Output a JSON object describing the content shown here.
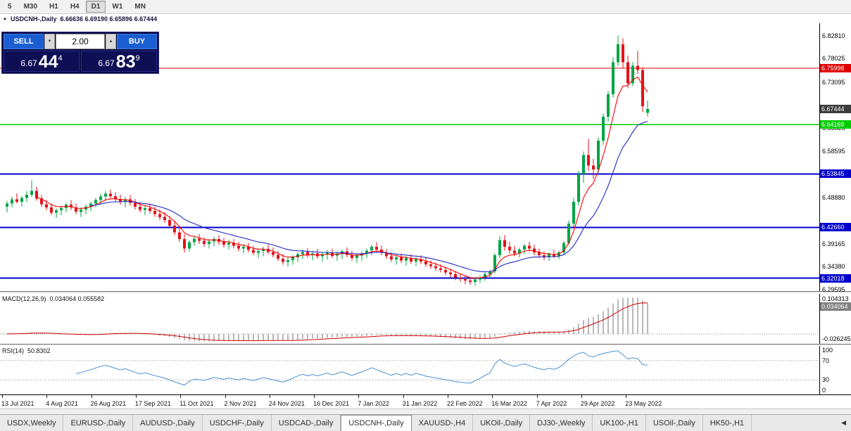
{
  "toolbar": {
    "timeframes": [
      {
        "label": "5",
        "active": false
      },
      {
        "label": "M30",
        "active": false
      },
      {
        "label": "H1",
        "active": false
      },
      {
        "label": "H4",
        "active": false
      },
      {
        "label": "D1",
        "active": true
      },
      {
        "label": "W1",
        "active": false
      },
      {
        "label": "MN",
        "active": false
      }
    ]
  },
  "chart_header": {
    "collapse_icon": "▲",
    "symbol": "USDCNH-,Daily",
    "ohlc": "6.66636 6.69190 6.65896 6.67444"
  },
  "trade_panel": {
    "sell_label": "SELL",
    "buy_label": "BUY",
    "volume": "2.00",
    "spin_up_icon": "▲",
    "spin_down_icon": "▼",
    "sell_price": {
      "big": "6.67",
      "pips": "44",
      "pt": "4"
    },
    "buy_price": {
      "big": "6.67",
      "pips": "83",
      "pt": "9"
    }
  },
  "price_axis": {
    "plain_labels": [
      "6.82810",
      "6.78025",
      "6.73095",
      "6.63525",
      "6.58595",
      "6.48880",
      "6.39165",
      "6.34380",
      "6.29595"
    ],
    "current": {
      "label": "6.67444",
      "price": 6.67444,
      "bg": "#3c3c3c"
    }
  },
  "levels": [
    {
      "label": "6.75998",
      "price": 6.75998,
      "color": "#e00000",
      "width": 1.3
    },
    {
      "label": "6.64169",
      "price": 6.64169,
      "color": "#00ce00",
      "width": 1.6
    },
    {
      "label": "6.53845",
      "price": 6.53845,
      "color": "#0000cd",
      "width": 2
    },
    {
      "label": "6.42660",
      "price": 6.4266,
      "color": "#0000cd",
      "width": 2
    },
    {
      "label": "6.32018",
      "price": 6.32018,
      "color": "#0000cd",
      "width": 2
    }
  ],
  "macd": {
    "header_name": "MACD(12,26,9)",
    "header_values": "0.034064 0.055582",
    "axis_top": "0.104313",
    "axis_badge": "0.034064",
    "axis_bottom": "-0.026245",
    "params": {
      "fast": 12,
      "slow": 26,
      "signal": 9
    }
  },
  "rsi": {
    "header_name": "RSI(14)",
    "header_value": "50.8302",
    "axis_labels": [
      "100",
      "70",
      "30",
      "0"
    ],
    "period": 14,
    "levels": [
      70,
      30
    ]
  },
  "date_axis": {
    "labels": [
      "13 Jul 2021",
      "4 Aug 2021",
      "26 Aug 2021",
      "17 Sep 2021",
      "11 Oct 2021",
      "2 Nov 2021",
      "24 Nov 2021",
      "16 Dec 2021",
      "7 Jan 2022",
      "31 Jan 2022",
      "22 Feb 2022",
      "16 Mar 2022",
      "7 Apr 2022",
      "29 Apr 2022",
      "23 May 2022"
    ]
  },
  "tabbar": {
    "tabs": [
      "USDX,Weekly",
      "EURUSD-,Daily",
      "AUDUSD-,Daily",
      "USDCHF-,Daily",
      "USDCAD-,Daily",
      "USDCNH-,Daily",
      "XAUUSD-,H4",
      "UKOil-,Daily",
      "DJ30-,Weekly",
      "UK100-,H1",
      "USOil-,Daily",
      "HK50-,H1"
    ],
    "active": "USDCNH-,Daily",
    "scroll_left_icon": "◀"
  },
  "colors": {
    "bull": "#00a546",
    "bear": "#e31219",
    "ma_fast": "#ff0000",
    "ma_slow": "#2028c0",
    "macd_hist": "#b8b8b8",
    "macd_signal": "#d00000",
    "rsi_line": "#4a90d0",
    "button_blue": "#1b5ed2",
    "panel_navy": "#0b0b46",
    "price_box_navy": "#0e0e55"
  },
  "chart_data": {
    "type": "candlestick",
    "symbol": "USDCNH-",
    "timeframe": "Daily",
    "title": "USDCNH-,Daily",
    "ylim": [
      6.293,
      6.854
    ],
    "ohlc_current": {
      "open": 6.66636,
      "high": 6.6919,
      "low": 6.65896,
      "close": 6.67444
    },
    "moving_averages": [
      {
        "type": "ema",
        "period": 6,
        "color": "#ff0000"
      },
      {
        "type": "ema",
        "period": 17,
        "color": "#2028c0"
      }
    ],
    "candles": [
      [
        6.47,
        6.482,
        6.458,
        6.476
      ],
      [
        6.476,
        6.49,
        6.468,
        6.485
      ],
      [
        6.485,
        6.498,
        6.476,
        6.48
      ],
      [
        6.48,
        6.492,
        6.47,
        6.488
      ],
      [
        6.488,
        6.502,
        6.48,
        6.495
      ],
      [
        6.495,
        6.525,
        6.49,
        6.503
      ],
      [
        6.503,
        6.512,
        6.482,
        6.487
      ],
      [
        6.487,
        6.494,
        6.47,
        6.475
      ],
      [
        6.475,
        6.484,
        6.462,
        6.468
      ],
      [
        6.468,
        6.476,
        6.452,
        6.457
      ],
      [
        6.457,
        6.466,
        6.446,
        6.462
      ],
      [
        6.462,
        6.472,
        6.452,
        6.467
      ],
      [
        6.467,
        6.478,
        6.458,
        6.474
      ],
      [
        6.474,
        6.484,
        6.462,
        6.468
      ],
      [
        6.468,
        6.476,
        6.454,
        6.459
      ],
      [
        6.459,
        6.468,
        6.448,
        6.464
      ],
      [
        6.464,
        6.474,
        6.454,
        6.47
      ],
      [
        6.47,
        6.48,
        6.46,
        6.476
      ],
      [
        6.476,
        6.488,
        6.468,
        6.484
      ],
      [
        6.484,
        6.496,
        6.474,
        6.491
      ],
      [
        6.491,
        6.502,
        6.482,
        6.497
      ],
      [
        6.497,
        6.506,
        6.486,
        6.492
      ],
      [
        6.492,
        6.5,
        6.48,
        6.486
      ],
      [
        6.486,
        6.495,
        6.474,
        6.48
      ],
      [
        6.48,
        6.49,
        6.468,
        6.485
      ],
      [
        6.485,
        6.494,
        6.472,
        6.478
      ],
      [
        6.478,
        6.486,
        6.464,
        6.47
      ],
      [
        6.47,
        6.479,
        6.458,
        6.463
      ],
      [
        6.463,
        6.472,
        6.452,
        6.467
      ],
      [
        6.467,
        6.476,
        6.456,
        6.461
      ],
      [
        6.461,
        6.47,
        6.448,
        6.454
      ],
      [
        6.454,
        6.464,
        6.442,
        6.448
      ],
      [
        6.448,
        6.458,
        6.436,
        6.442
      ],
      [
        6.442,
        6.45,
        6.424,
        6.43
      ],
      [
        6.43,
        6.44,
        6.41,
        6.416
      ],
      [
        6.416,
        6.426,
        6.396,
        6.402
      ],
      [
        6.402,
        6.412,
        6.374,
        6.382
      ],
      [
        6.382,
        6.4,
        6.376,
        6.395
      ],
      [
        6.395,
        6.408,
        6.388,
        6.403
      ],
      [
        6.403,
        6.412,
        6.392,
        6.398
      ],
      [
        6.398,
        6.406,
        6.386,
        6.392
      ],
      [
        6.392,
        6.402,
        6.382,
        6.397
      ],
      [
        6.397,
        6.407,
        6.387,
        6.402
      ],
      [
        6.402,
        6.41,
        6.39,
        6.396
      ],
      [
        6.396,
        6.404,
        6.384,
        6.39
      ],
      [
        6.39,
        6.4,
        6.38,
        6.394
      ],
      [
        6.394,
        6.402,
        6.382,
        6.388
      ],
      [
        6.388,
        6.396,
        6.376,
        6.382
      ],
      [
        6.382,
        6.392,
        6.372,
        6.386
      ],
      [
        6.386,
        6.394,
        6.374,
        6.379
      ],
      [
        6.379,
        6.388,
        6.368,
        6.373
      ],
      [
        6.373,
        6.382,
        6.362,
        6.377
      ],
      [
        6.377,
        6.386,
        6.366,
        6.381
      ],
      [
        6.381,
        6.39,
        6.37,
        6.375
      ],
      [
        6.375,
        6.384,
        6.364,
        6.369
      ],
      [
        6.369,
        6.378,
        6.356,
        6.361
      ],
      [
        6.361,
        6.37,
        6.348,
        6.354
      ],
      [
        6.354,
        6.364,
        6.344,
        6.358
      ],
      [
        6.358,
        6.368,
        6.348,
        6.364
      ],
      [
        6.364,
        6.374,
        6.354,
        6.37
      ],
      [
        6.37,
        6.38,
        6.36,
        6.375
      ],
      [
        6.375,
        6.383,
        6.363,
        6.368
      ],
      [
        6.368,
        6.377,
        6.357,
        6.372
      ],
      [
        6.372,
        6.381,
        6.361,
        6.366
      ],
      [
        6.366,
        6.375,
        6.355,
        6.37
      ],
      [
        6.37,
        6.379,
        6.359,
        6.374
      ],
      [
        6.374,
        6.382,
        6.362,
        6.367
      ],
      [
        6.367,
        6.376,
        6.356,
        6.371
      ],
      [
        6.371,
        6.38,
        6.36,
        6.376
      ],
      [
        6.376,
        6.384,
        6.364,
        6.369
      ],
      [
        6.369,
        6.377,
        6.357,
        6.362
      ],
      [
        6.362,
        6.372,
        6.352,
        6.367
      ],
      [
        6.367,
        6.376,
        6.357,
        6.372
      ],
      [
        6.372,
        6.382,
        6.362,
        6.378
      ],
      [
        6.378,
        6.39,
        6.368,
        6.386
      ],
      [
        6.386,
        6.395,
        6.374,
        6.38
      ],
      [
        6.38,
        6.388,
        6.368,
        6.373
      ],
      [
        6.373,
        6.381,
        6.361,
        6.366
      ],
      [
        6.366,
        6.374,
        6.354,
        6.359
      ],
      [
        6.359,
        6.368,
        6.348,
        6.364
      ],
      [
        6.364,
        6.372,
        6.352,
        6.357
      ],
      [
        6.357,
        6.366,
        6.347,
        6.362
      ],
      [
        6.362,
        6.37,
        6.35,
        6.355
      ],
      [
        6.355,
        6.364,
        6.345,
        6.36
      ],
      [
        6.36,
        6.368,
        6.35,
        6.355
      ],
      [
        6.355,
        6.362,
        6.344,
        6.349
      ],
      [
        6.349,
        6.357,
        6.34,
        6.345
      ],
      [
        6.345,
        6.353,
        6.336,
        6.341
      ],
      [
        6.341,
        6.349,
        6.332,
        6.337
      ],
      [
        6.337,
        6.344,
        6.326,
        6.332
      ],
      [
        6.332,
        6.34,
        6.322,
        6.328
      ],
      [
        6.328,
        6.335,
        6.316,
        6.322
      ],
      [
        6.322,
        6.33,
        6.312,
        6.318
      ],
      [
        6.318,
        6.326,
        6.308,
        6.315
      ],
      [
        6.315,
        6.322,
        6.306,
        6.312
      ],
      [
        6.312,
        6.32,
        6.305,
        6.317
      ],
      [
        6.317,
        6.326,
        6.31,
        6.322
      ],
      [
        6.322,
        6.332,
        6.314,
        6.328
      ],
      [
        6.328,
        6.338,
        6.32,
        6.334
      ],
      [
        6.334,
        6.372,
        6.33,
        6.368
      ],
      [
        6.368,
        6.408,
        6.362,
        6.4
      ],
      [
        6.4,
        6.41,
        6.378,
        6.386
      ],
      [
        6.386,
        6.396,
        6.372,
        6.378
      ],
      [
        6.378,
        6.388,
        6.366,
        6.372
      ],
      [
        6.372,
        6.384,
        6.364,
        6.38
      ],
      [
        6.38,
        6.392,
        6.37,
        6.388
      ],
      [
        6.388,
        6.396,
        6.376,
        6.382
      ],
      [
        6.382,
        6.39,
        6.368,
        6.374
      ],
      [
        6.374,
        6.382,
        6.362,
        6.368
      ],
      [
        6.368,
        6.376,
        6.358,
        6.364
      ],
      [
        6.364,
        6.374,
        6.356,
        6.37
      ],
      [
        6.37,
        6.38,
        6.362,
        6.366
      ],
      [
        6.366,
        6.378,
        6.36,
        6.374
      ],
      [
        6.374,
        6.398,
        6.37,
        6.394
      ],
      [
        6.394,
        6.44,
        6.39,
        6.434
      ],
      [
        6.434,
        6.488,
        6.428,
        6.48
      ],
      [
        6.48,
        6.545,
        6.472,
        6.538
      ],
      [
        6.538,
        6.585,
        6.52,
        6.578
      ],
      [
        6.578,
        6.612,
        6.545,
        6.556
      ],
      [
        6.556,
        6.57,
        6.528,
        6.548
      ],
      [
        6.548,
        6.615,
        6.542,
        6.608
      ],
      [
        6.608,
        6.665,
        6.6,
        6.658
      ],
      [
        6.658,
        6.712,
        6.648,
        6.705
      ],
      [
        6.705,
        6.782,
        6.698,
        6.772
      ],
      [
        6.772,
        6.828,
        6.765,
        6.81
      ],
      [
        6.81,
        6.822,
        6.76,
        6.772
      ],
      [
        6.772,
        6.786,
        6.718,
        6.728
      ],
      [
        6.728,
        6.772,
        6.722,
        6.765
      ],
      [
        6.765,
        6.796,
        6.748,
        6.756
      ],
      [
        6.756,
        6.762,
        6.668,
        6.68
      ],
      [
        6.66636,
        6.6919,
        6.65896,
        6.67444
      ]
    ]
  }
}
